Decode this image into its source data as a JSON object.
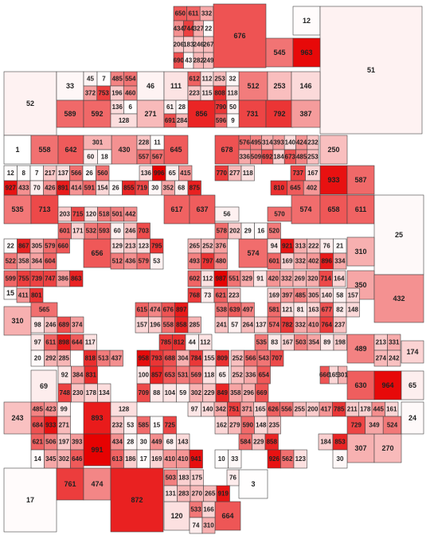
{
  "blocks": [
    676,
    12,
    51,
    545,
    963,
    52,
    33,
    46,
    111,
    512,
    253,
    146,
    589,
    592,
    271,
    856,
    731,
    792,
    387,
    1,
    558,
    642,
    430,
    645,
    678,
    250,
    933,
    587,
    535,
    713,
    617,
    637,
    574,
    658,
    611,
    25,
    656,
    574,
    310,
    350,
    432,
    15,
    310,
    489,
    174,
    69,
    630,
    964,
    65,
    243,
    24,
    893,
    991,
    307,
    270,
    17,
    761,
    474,
    872,
    120,
    664,
    3
  ],
  "strips": [
    [
      650,
      611,
      332
    ],
    [
      434,
      744,
      327,
      22
    ],
    [
      206,
      183,
      246,
      267
    ],
    [
      690,
      43,
      282,
      249
    ],
    [
      45,
      7
    ],
    [
      485,
      554
    ],
    [
      372,
      753,
      196,
      460
    ],
    [
      612,
      112,
      253,
      32
    ],
    [
      223,
      115,
      808,
      118
    ],
    [
      136,
      6
    ],
    [
      128
    ],
    [
      61,
      28
    ],
    [
      691,
      284
    ],
    [
      790,
      50
    ],
    [
      596,
      9
    ],
    [
      301
    ],
    [
      60,
      18
    ],
    [
      228,
      11
    ],
    [
      557,
      567
    ],
    [
      576,
      495,
      314,
      393,
      140,
      424,
      232
    ],
    [
      336,
      509,
      692,
      184,
      673,
      485,
      253
    ],
    [
      12,
      8,
      7,
      217,
      137,
      566,
      26,
      560
    ],
    [
      136,
      996,
      65,
      415
    ],
    [
      770,
      277,
      118
    ],
    [
      737,
      167
    ],
    [
      927,
      433,
      70,
      426,
      891,
      414,
      591,
      154,
      26,
      855,
      719,
      30,
      352,
      68,
      875
    ],
    [
      810,
      645,
      402
    ],
    [
      203,
      715,
      120,
      518,
      501,
      442
    ],
    [
      56
    ],
    [
      570
    ],
    [
      601,
      171,
      532,
      593,
      60,
      246,
      703
    ],
    [
      578,
      202,
      29,
      16,
      520
    ],
    [
      22,
      867,
      305,
      579,
      660
    ],
    [
      129,
      213,
      123,
      795
    ],
    [
      265,
      252,
      376
    ],
    [
      94,
      921,
      313,
      222,
      76,
      21
    ],
    [
      522,
      358,
      364,
      604
    ],
    [
      512,
      436,
      579,
      53
    ],
    [
      493,
      797,
      480
    ],
    [
      601,
      169,
      332,
      402,
      896,
      334
    ],
    [
      599,
      755,
      739,
      747,
      386,
      863
    ],
    [
      602,
      112,
      987,
      551,
      329,
      91,
      420,
      332,
      269,
      320,
      714,
      164
    ],
    [
      411,
      801
    ],
    [
      768,
      73,
      621,
      223
    ],
    [
      169,
      397,
      485,
      305,
      140,
      58,
      157
    ],
    [
      565
    ],
    [
      615,
      474,
      676,
      897
    ],
    [
      538,
      639,
      497
    ],
    [
      581,
      121,
      81,
      163,
      677,
      82,
      148
    ],
    [
      98,
      246,
      689,
      374
    ],
    [
      157,
      196,
      558,
      858,
      285
    ],
    [
      241,
      57,
      264,
      137,
      574,
      782,
      332,
      410,
      764,
      237
    ],
    [
      97,
      611,
      898,
      644,
      117
    ],
    [
      785,
      812,
      44,
      112
    ],
    [
      535,
      83,
      167,
      503,
      354,
      89,
      198
    ],
    [
      213,
      331
    ],
    [
      20,
      292,
      285
    ],
    [
      818,
      513,
      437
    ],
    [
      958,
      793,
      688,
      304,
      784,
      155,
      809
    ],
    [
      252,
      566,
      543,
      707
    ],
    [
      274,
      242
    ],
    [
      92,
      384,
      831
    ],
    [
      100,
      857,
      653,
      531,
      569,
      118,
      65
    ],
    [
      252,
      336,
      654
    ],
    [
      666,
      165,
      301
    ],
    [
      748,
      230,
      178,
      134
    ],
    [
      709,
      88,
      104,
      59,
      302,
      229,
      849,
      358,
      296,
      669
    ],
    [
      485,
      423,
      99
    ],
    [
      128
    ],
    [
      97,
      140,
      342,
      751,
      371,
      165,
      626,
      556,
      255,
      200,
      417,
      785,
      211,
      178,
      445,
      161
    ],
    [
      684,
      933,
      271
    ],
    [
      232,
      53,
      585,
      15,
      725
    ],
    [
      162,
      279,
      590,
      148,
      235
    ],
    [
      729,
      349,
      524
    ],
    [
      621,
      506,
      197,
      393
    ],
    [
      434,
      28,
      30,
      449,
      68,
      143
    ],
    [
      584,
      229,
      858
    ],
    [
      184,
      853
    ],
    [
      14,
      345,
      302,
      646
    ],
    [
      613,
      186,
      17,
      169,
      410,
      410,
      941
    ],
    [
      10,
      33
    ],
    [
      926,
      562,
      123
    ],
    [
      30
    ],
    [
      503,
      183,
      175
    ],
    [
      76
    ],
    [
      131,
      283,
      270,
      265,
      919
    ],
    [
      533,
      166
    ],
    [
      74,
      310
    ]
  ]
}
